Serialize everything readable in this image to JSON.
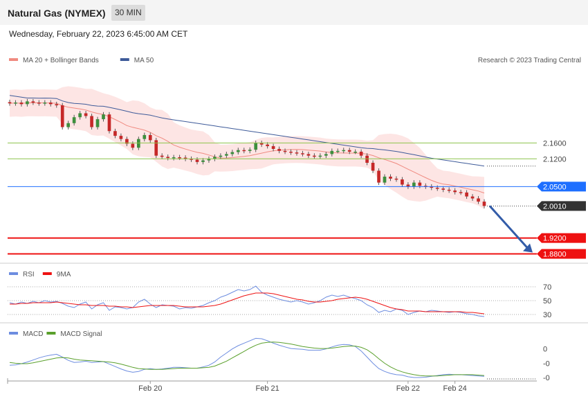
{
  "header": {
    "title": "Natural Gas (NYMEX)",
    "timeframe": "30 MIN",
    "datetime": "Wednesday, February 22, 2023 6:45:00 AM CET"
  },
  "chart_data": [
    {
      "type": "candlestick",
      "panel": "price",
      "title": "",
      "source": "Research © 2023 Trading Central",
      "legend": [
        {
          "name": "MA 20 + Bollinger Bands",
          "color": "#f08a80"
        },
        {
          "name": "MA 50",
          "color": "#3d5a99"
        }
      ],
      "ylim": [
        1.86,
        2.36
      ],
      "close_path": [
        2.26,
        2.262,
        2.258,
        2.265,
        2.262,
        2.26,
        2.262,
        2.258,
        2.255,
        2.2,
        2.21,
        2.225,
        2.235,
        2.228,
        2.2,
        2.22,
        2.232,
        2.19,
        2.178,
        2.17,
        2.158,
        2.148,
        2.17,
        2.18,
        2.167,
        2.128,
        2.125,
        2.122,
        2.124,
        2.123,
        2.12,
        2.118,
        2.112,
        2.116,
        2.12,
        2.125,
        2.128,
        2.132,
        2.137,
        2.142,
        2.14,
        2.143,
        2.16,
        2.156,
        2.152,
        2.145,
        2.14,
        2.138,
        2.136,
        2.134,
        2.132,
        2.128,
        2.126,
        2.128,
        2.132,
        2.14,
        2.14,
        2.142,
        2.138,
        2.138,
        2.128,
        2.11,
        2.09,
        2.06,
        2.075,
        2.07,
        2.068,
        2.055,
        2.05,
        2.06,
        2.052,
        2.05,
        2.047,
        2.045,
        2.042,
        2.04,
        2.036,
        2.035,
        2.025,
        2.02,
        2.012,
        2.001
      ],
      "levels": [
        {
          "label": "2.1600",
          "value": 2.16,
          "color": "#8bc34a",
          "style": "line"
        },
        {
          "label": "2.1200",
          "value": 2.12,
          "color": "#8bc34a",
          "style": "line"
        },
        {
          "label": "2.0500",
          "value": 2.05,
          "color": "#1e6fff",
          "style": "tag"
        },
        {
          "label": "2.0010",
          "value": 2.001,
          "color": "#333333",
          "style": "current"
        },
        {
          "label": "1.9200",
          "value": 1.92,
          "color": "#ee1111",
          "style": "tag"
        },
        {
          "label": "1.8800",
          "value": 1.88,
          "color": "#ee1111",
          "style": "tag"
        }
      ],
      "forecast": {
        "from": 2.001,
        "to": 1.88,
        "color": "#335ca8"
      }
    },
    {
      "type": "line",
      "panel": "rsi",
      "legend": [
        {
          "name": "RSI",
          "color": "#6d8de0"
        },
        {
          "name": "9MA",
          "color": "#ee1111"
        }
      ],
      "ylim": [
        20,
        80
      ],
      "ticks": [
        "70",
        "50",
        "30"
      ],
      "rsi": [
        47,
        45,
        48,
        46,
        49,
        47,
        50,
        48,
        49,
        46,
        42,
        40,
        45,
        48,
        38,
        44,
        47,
        36,
        41,
        40,
        38,
        40,
        48,
        52,
        45,
        40,
        44,
        43,
        42,
        38,
        40,
        39,
        41,
        43,
        47,
        50,
        55,
        58,
        62,
        66,
        64,
        66,
        71,
        62,
        58,
        55,
        52,
        50,
        48,
        50,
        48,
        45,
        47,
        50,
        55,
        58,
        56,
        58,
        55,
        53,
        50,
        44,
        40,
        33,
        36,
        34,
        38,
        36,
        30,
        33,
        35,
        34,
        36,
        35,
        34,
        33,
        34,
        33,
        31,
        30,
        28,
        27
      ],
      "ma9": [
        45,
        45,
        46,
        46,
        47,
        47,
        47,
        47,
        48,
        47,
        46,
        45,
        44,
        44,
        43,
        43,
        43,
        42,
        42,
        41,
        41,
        40,
        41,
        42,
        43,
        43,
        43,
        43,
        43,
        42,
        41,
        41,
        41,
        41,
        42,
        43,
        45,
        48,
        51,
        54,
        57,
        59,
        61,
        61,
        61,
        60,
        58,
        56,
        54,
        52,
        51,
        49,
        48,
        48,
        49,
        50,
        52,
        53,
        54,
        55,
        54,
        52,
        49,
        46,
        43,
        40,
        38,
        37,
        35,
        35,
        35,
        34,
        34,
        34,
        34,
        34,
        34,
        34,
        33,
        33,
        32,
        31
      ]
    },
    {
      "type": "line",
      "panel": "macd",
      "legend": [
        {
          "name": "MACD",
          "color": "#6d8de0"
        },
        {
          "name": "MACD Signal",
          "color": "#5aa02c"
        }
      ],
      "ylim": [
        -0.075,
        0.03
      ],
      "ticks": [
        "0",
        "-0",
        "-0"
      ],
      "macd": [
        -0.04,
        -0.039,
        -0.036,
        -0.032,
        -0.027,
        -0.022,
        -0.018,
        -0.015,
        -0.013,
        -0.02,
        -0.028,
        -0.033,
        -0.032,
        -0.03,
        -0.033,
        -0.032,
        -0.031,
        -0.037,
        -0.043,
        -0.049,
        -0.054,
        -0.057,
        -0.055,
        -0.05,
        -0.048,
        -0.05,
        -0.049,
        -0.047,
        -0.045,
        -0.045,
        -0.046,
        -0.047,
        -0.047,
        -0.044,
        -0.04,
        -0.032,
        -0.02,
        -0.01,
        0.0,
        0.008,
        0.014,
        0.02,
        0.026,
        0.025,
        0.02,
        0.014,
        0.009,
        0.005,
        0.001,
        0.0,
        -0.001,
        -0.003,
        -0.003,
        -0.003,
        0.0,
        0.005,
        0.009,
        0.011,
        0.01,
        0.006,
        -0.005,
        -0.02,
        -0.035,
        -0.048,
        -0.055,
        -0.06,
        -0.063,
        -0.064,
        -0.068,
        -0.07,
        -0.07,
        -0.069,
        -0.067,
        -0.065,
        -0.063,
        -0.062,
        -0.063,
        -0.063,
        -0.064,
        -0.065,
        -0.066,
        -0.067
      ],
      "signal": [
        -0.033,
        -0.035,
        -0.036,
        -0.036,
        -0.034,
        -0.031,
        -0.028,
        -0.025,
        -0.022,
        -0.021,
        -0.022,
        -0.025,
        -0.027,
        -0.028,
        -0.029,
        -0.03,
        -0.031,
        -0.032,
        -0.034,
        -0.037,
        -0.041,
        -0.045,
        -0.048,
        -0.049,
        -0.05,
        -0.05,
        -0.05,
        -0.049,
        -0.048,
        -0.047,
        -0.047,
        -0.047,
        -0.047,
        -0.046,
        -0.045,
        -0.042,
        -0.036,
        -0.03,
        -0.022,
        -0.014,
        -0.006,
        0.002,
        0.009,
        0.014,
        0.016,
        0.017,
        0.016,
        0.014,
        0.012,
        0.009,
        0.006,
        0.004,
        0.002,
        0.001,
        0.001,
        0.002,
        0.004,
        0.006,
        0.007,
        0.007,
        0.004,
        -0.002,
        -0.012,
        -0.024,
        -0.035,
        -0.044,
        -0.051,
        -0.056,
        -0.06,
        -0.063,
        -0.065,
        -0.066,
        -0.066,
        -0.066,
        -0.065,
        -0.064,
        -0.063,
        -0.063,
        -0.063,
        -0.063,
        -0.064,
        -0.065
      ]
    }
  ],
  "x_axis": {
    "labels": [
      {
        "label": "Feb 20",
        "index": 24
      },
      {
        "label": "Feb 21",
        "index": 44
      },
      {
        "label": "Feb 22",
        "index": 68
      },
      {
        "label": "Feb 24",
        "index": 76
      }
    ]
  }
}
